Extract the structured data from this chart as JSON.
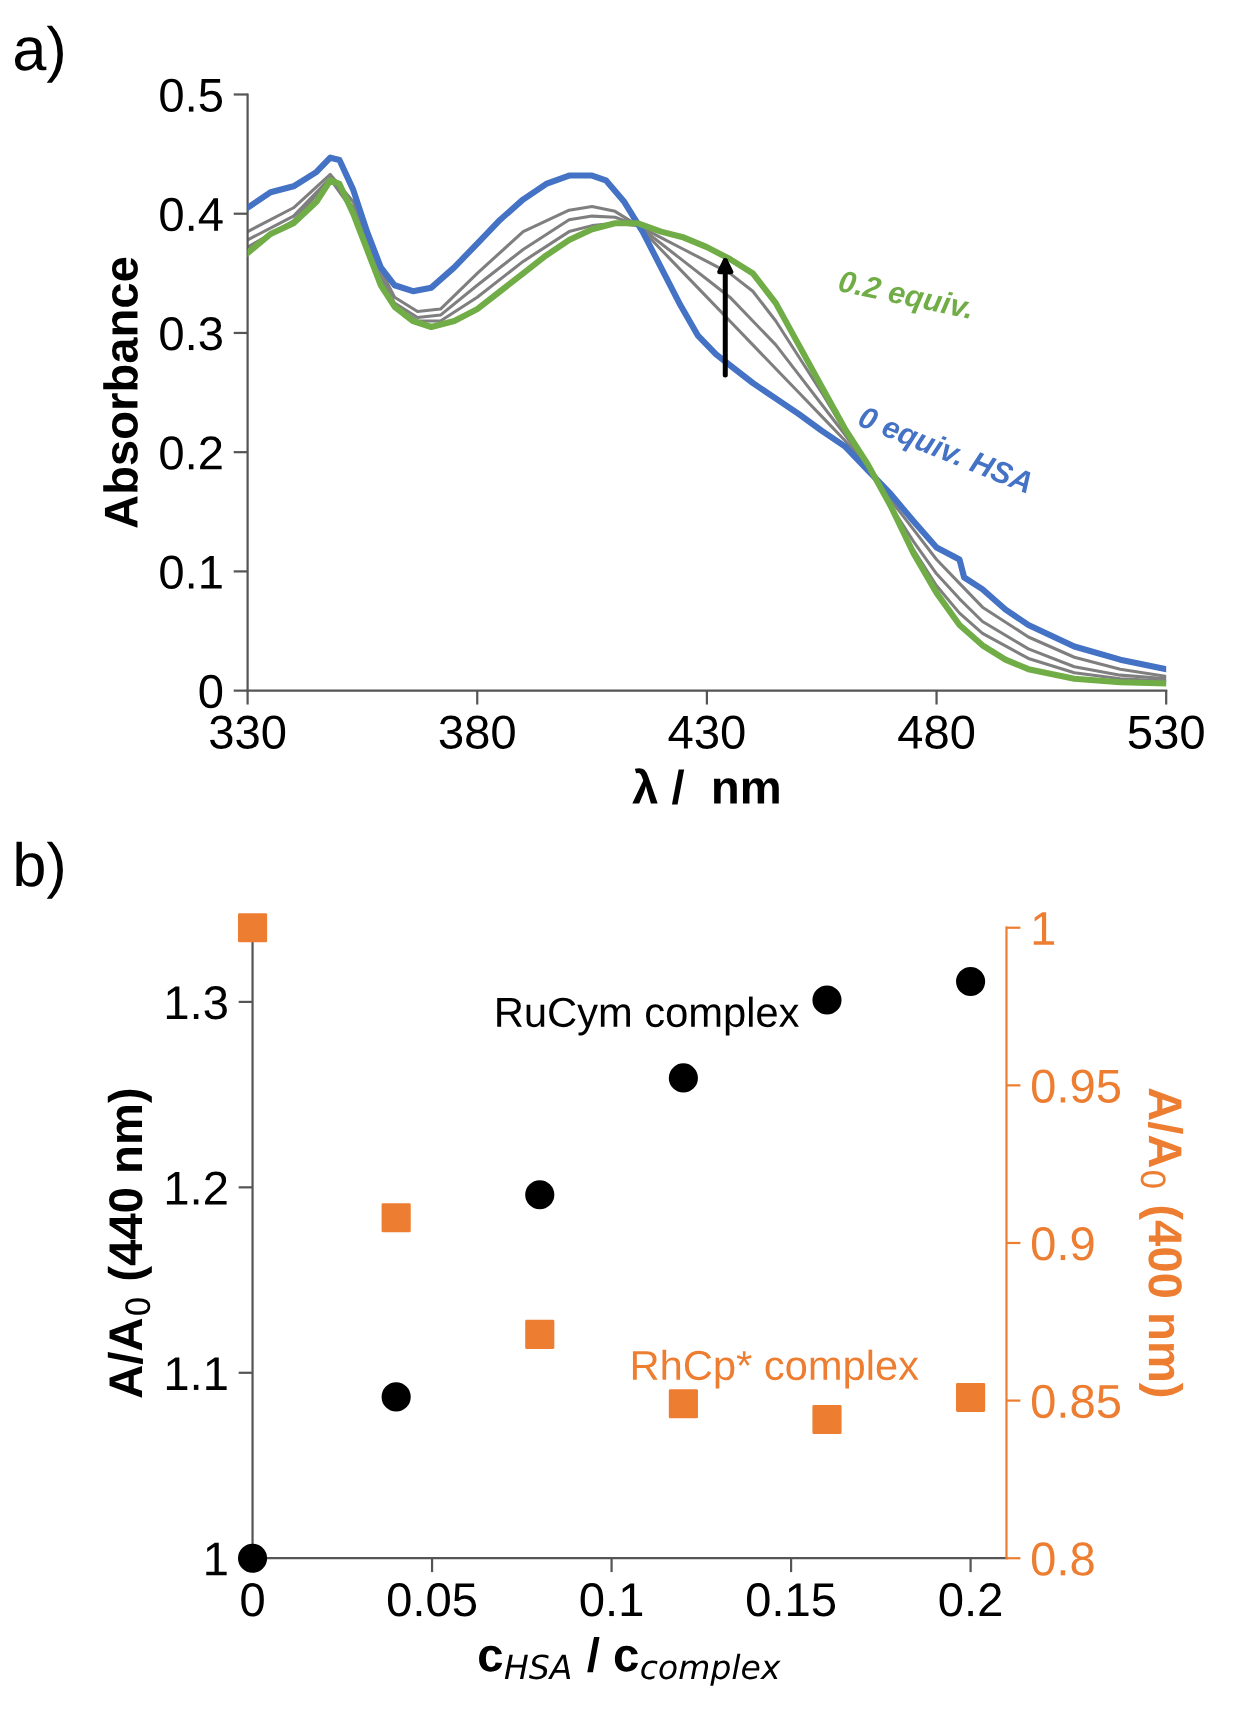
{
  "chart_data": [
    {
      "type": "line",
      "xlabel": "λ /  nm",
      "ylabel": "Absorbance",
      "xlim": [
        330,
        530
      ],
      "xticks": [
        330,
        380,
        430,
        480,
        530
      ],
      "ylim": [
        0,
        0.5
      ],
      "yticks": [
        0,
        0.1,
        0.2,
        0.3,
        0.4,
        0.5
      ],
      "grid": false,
      "legend": false,
      "marker": "none",
      "line_style": "solid",
      "annotations": [
        "a)"
      ],
      "series": [
        {
          "name": "0 equiv. HSA",
          "color": "#4472c4",
          "x": [
            330,
            335,
            340,
            345,
            348,
            350,
            353,
            356,
            359,
            362,
            366,
            370,
            375,
            380,
            385,
            390,
            395,
            400,
            405,
            408,
            412,
            416,
            420,
            424,
            428,
            432,
            436,
            440,
            445,
            450,
            455,
            460,
            465,
            470,
            475,
            480,
            485,
            486,
            490,
            495,
            500,
            510,
            520,
            530
          ],
          "values": [
            0.405,
            0.418,
            0.423,
            0.435,
            0.447,
            0.445,
            0.42,
            0.385,
            0.355,
            0.34,
            0.335,
            0.338,
            0.355,
            0.375,
            0.395,
            0.412,
            0.425,
            0.432,
            0.432,
            0.428,
            0.41,
            0.385,
            0.355,
            0.325,
            0.298,
            0.282,
            0.27,
            0.258,
            0.245,
            0.232,
            0.218,
            0.205,
            0.185,
            0.165,
            0.142,
            0.12,
            0.11,
            0.095,
            0.085,
            0.068,
            0.055,
            0.037,
            0.026,
            0.018
          ]
        },
        {
          "color": "#7f7f7f",
          "x": [
            330,
            340,
            348,
            353,
            358,
            362,
            367,
            372,
            380,
            390,
            400,
            405,
            410,
            415,
            420,
            425,
            430,
            435,
            440,
            445,
            450,
            455,
            460,
            465,
            470,
            475,
            480,
            485,
            490,
            500,
            510,
            520,
            530
          ],
          "values": [
            0.385,
            0.405,
            0.433,
            0.41,
            0.36,
            0.33,
            0.318,
            0.32,
            0.35,
            0.385,
            0.403,
            0.406,
            0.402,
            0.39,
            0.37,
            0.35,
            0.33,
            0.31,
            0.29,
            0.27,
            0.25,
            0.23,
            0.21,
            0.188,
            0.16,
            0.135,
            0.11,
            0.09,
            0.07,
            0.045,
            0.028,
            0.018,
            0.012
          ]
        },
        {
          "color": "#7f7f7f",
          "x": [
            330,
            340,
            348,
            353,
            358,
            362,
            367,
            372,
            380,
            390,
            400,
            405,
            410,
            415,
            420,
            425,
            430,
            435,
            440,
            445,
            450,
            455,
            460,
            465,
            470,
            475,
            480,
            485,
            490,
            500,
            510,
            520,
            530
          ],
          "values": [
            0.378,
            0.398,
            0.43,
            0.405,
            0.355,
            0.325,
            0.313,
            0.315,
            0.34,
            0.37,
            0.395,
            0.398,
            0.397,
            0.39,
            0.375,
            0.36,
            0.345,
            0.33,
            0.31,
            0.29,
            0.265,
            0.24,
            0.215,
            0.188,
            0.155,
            0.125,
            0.098,
            0.077,
            0.058,
            0.035,
            0.02,
            0.013,
            0.01
          ]
        },
        {
          "color": "#7f7f7f",
          "x": [
            330,
            340,
            348,
            353,
            358,
            362,
            367,
            372,
            380,
            390,
            400,
            405,
            410,
            415,
            420,
            425,
            430,
            435,
            440,
            445,
            450,
            455,
            460,
            465,
            470,
            475,
            480,
            485,
            490,
            500,
            510,
            520,
            530
          ],
          "values": [
            0.372,
            0.394,
            0.429,
            0.402,
            0.35,
            0.322,
            0.31,
            0.31,
            0.33,
            0.36,
            0.385,
            0.39,
            0.392,
            0.39,
            0.38,
            0.37,
            0.36,
            0.35,
            0.335,
            0.31,
            0.28,
            0.25,
            0.218,
            0.188,
            0.153,
            0.118,
            0.088,
            0.065,
            0.048,
            0.027,
            0.015,
            0.01,
            0.008
          ]
        },
        {
          "name": "0.2 equiv.",
          "color": "#70ad47",
          "x": [
            330,
            335,
            340,
            345,
            348,
            350,
            353,
            356,
            359,
            362,
            366,
            370,
            375,
            380,
            385,
            390,
            395,
            400,
            405,
            410,
            415,
            420,
            425,
            430,
            435,
            440,
            445,
            450,
            455,
            460,
            465,
            470,
            475,
            480,
            485,
            490,
            495,
            500,
            510,
            520,
            530
          ],
          "values": [
            0.367,
            0.383,
            0.392,
            0.41,
            0.428,
            0.425,
            0.4,
            0.37,
            0.34,
            0.322,
            0.31,
            0.305,
            0.31,
            0.32,
            0.335,
            0.35,
            0.365,
            0.378,
            0.387,
            0.392,
            0.392,
            0.385,
            0.38,
            0.372,
            0.362,
            0.35,
            0.325,
            0.29,
            0.255,
            0.22,
            0.19,
            0.155,
            0.115,
            0.082,
            0.055,
            0.038,
            0.026,
            0.018,
            0.01,
            0.007,
            0.006
          ]
        }
      ]
    },
    {
      "type": "scatter",
      "xlabel": "c$_{HSA}$ / c$_{complex}$",
      "ylabel": "A/A$_{0}$ (440 nm)",
      "y2label": "A/A$_{0}$ (400 nm)",
      "xlim": [
        0,
        0.21
      ],
      "xticks": [
        0,
        0.05,
        0.1,
        0.15,
        0.2
      ],
      "ylim": [
        1,
        1.34
      ],
      "yticks": [
        1,
        1.1,
        1.2,
        1.3
      ],
      "y2lim": [
        0.8,
        1.0
      ],
      "y2ticks": [
        0.8,
        0.85,
        0.9,
        0.95,
        1
      ],
      "grid": false,
      "legend": false,
      "annotations": [
        "b)"
      ],
      "x": [
        0,
        0.04,
        0.08,
        0.12,
        0.16,
        0.2
      ],
      "series": [
        {
          "name": "RuCym complex",
          "color": "#000000",
          "marker": "circle",
          "values": [
            1.0,
            1.087,
            1.196,
            1.259,
            1.301,
            1.311
          ]
        },
        {
          "name": "RhCp* complex",
          "color": "#ed7d31",
          "marker": "square",
          "axis": "y2",
          "values": [
            1.0,
            0.908,
            0.871,
            0.849,
            0.844,
            0.851
          ]
        }
      ]
    }
  ]
}
